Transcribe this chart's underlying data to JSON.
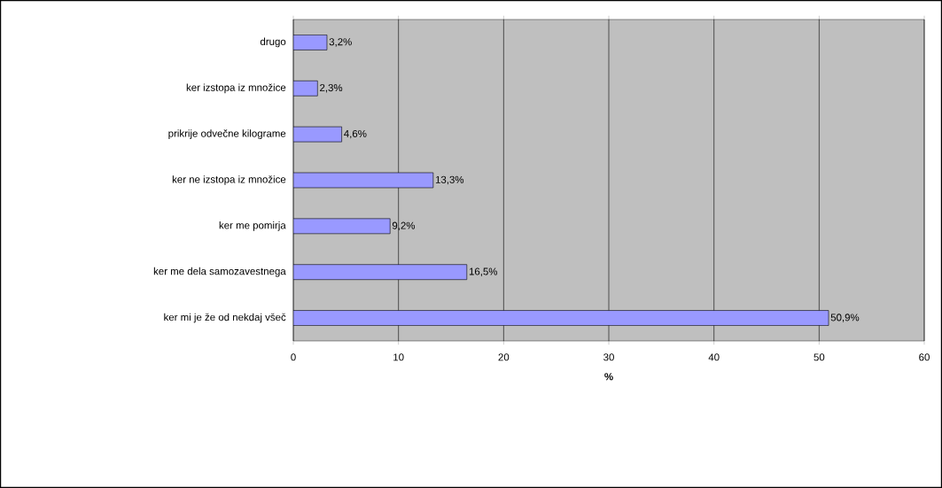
{
  "chart_data": {
    "type": "bar",
    "orientation": "horizontal",
    "xlabel": "%",
    "categories": [
      "drugo",
      "ker izstopa iz množice",
      "prikrije odvečne kilograme",
      "ker ne izstopa iz množice",
      "ker me pomirja",
      "ker me dela samozavestnega",
      "ker mi je že od nekdaj všeč"
    ],
    "values": [
      3.2,
      2.3,
      4.6,
      13.3,
      9.2,
      16.5,
      50.9
    ],
    "value_labels": [
      "3,2%",
      "2,3%",
      "4,6%",
      "13,3%",
      "9,2%",
      "16,5%",
      "50,9%"
    ],
    "color": "#9999ff",
    "xlim": [
      0,
      60
    ],
    "xticks": [
      0,
      10,
      20,
      30,
      40,
      50,
      60
    ],
    "grid": "x"
  }
}
